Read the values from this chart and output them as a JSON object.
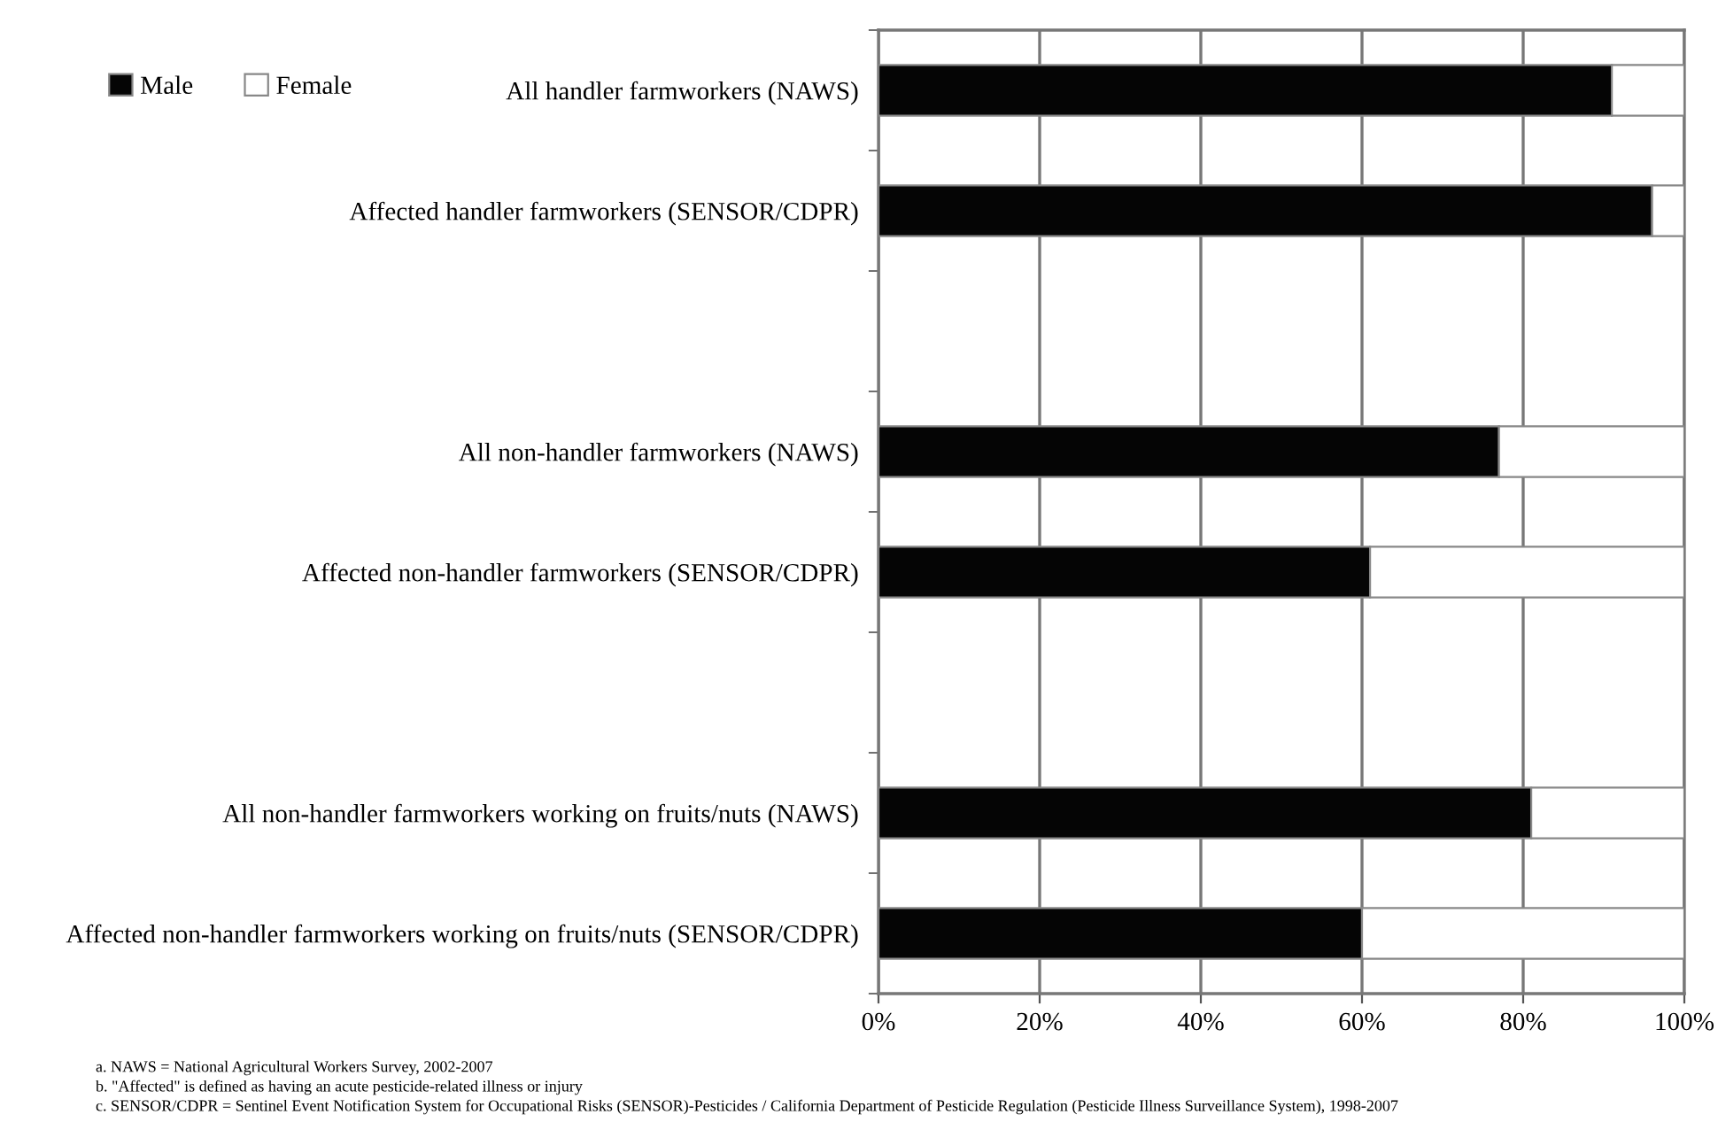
{
  "chart_data": {
    "type": "bar",
    "orientation": "horizontal",
    "stacked": true,
    "categories": [
      "All handler farmworkers (NAWS)",
      "Affected handler farmworkers (SENSOR/CDPR)",
      null,
      "All non-handler farmworkers (NAWS)",
      "Affected non-handler farmworkers (SENSOR/CDPR)",
      null,
      "All non-handler farmworkers working on fruits/nuts (NAWS)",
      "Affected non-handler farmworkers working on fruits/nuts (SENSOR/CDPR)"
    ],
    "series": [
      {
        "name": "Male",
        "color": "#050505",
        "values": [
          91,
          96,
          null,
          77,
          61,
          null,
          81,
          60
        ]
      },
      {
        "name": "Female",
        "color": "#ffffff",
        "values": [
          9,
          4,
          null,
          23,
          39,
          null,
          19,
          40
        ]
      }
    ],
    "xlim": [
      0,
      100
    ],
    "xticks": [
      {
        "value": 0,
        "label": "0%"
      },
      {
        "value": 20,
        "label": "20%"
      },
      {
        "value": 40,
        "label": "40%"
      },
      {
        "value": 60,
        "label": "60%"
      },
      {
        "value": 80,
        "label": "80%"
      },
      {
        "value": 100,
        "label": "100%"
      }
    ],
    "grid": "x",
    "legend": "top left",
    "annotations": [
      "a. NAWS = National Agricultural Workers Survey, 2002-2007",
      "b. \"Affected\" is defined as having an acute pesticide-related illness or injury",
      "c. SENSOR/CDPR = Sentinel Event Notification System for Occupational Risks (SENSOR)-Pesticides / California Department of Pesticide Regulation (Pesticide Illness Surveillance System), 1998-2007"
    ]
  }
}
